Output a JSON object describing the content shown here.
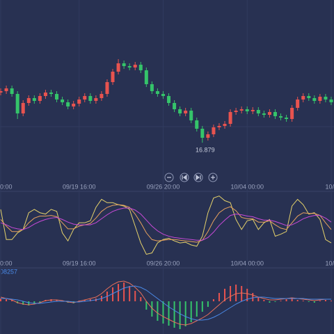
{
  "chart_data": [
    {
      "type": "candlestick",
      "categories": [
        "0:00",
        null,
        null,
        null,
        null,
        null,
        null,
        null,
        null,
        null,
        null,
        null,
        null,
        null,
        "09/19 16:00",
        null,
        null,
        null,
        null,
        null,
        null,
        null,
        null,
        null,
        null,
        null,
        null,
        null,
        null,
        "09/26 20:00",
        null,
        null,
        null,
        null,
        null,
        null,
        null,
        null,
        null,
        null,
        null,
        null,
        null,
        null,
        "10/04 00:00",
        null,
        null,
        null,
        null,
        null,
        null,
        null,
        null,
        null,
        null,
        null,
        null,
        null,
        null,
        "10/"
      ],
      "open": [
        17.6,
        17.62,
        17.66,
        17.58,
        17.3,
        17.45,
        17.52,
        17.48,
        17.55,
        17.6,
        17.58,
        17.5,
        17.46,
        17.4,
        17.44,
        17.5,
        17.55,
        17.48,
        17.52,
        17.58,
        17.75,
        17.9,
        18.02,
        17.98,
        17.96,
        18.0,
        17.92,
        17.72,
        17.62,
        17.58,
        17.55,
        17.45,
        17.36,
        17.3,
        17.34,
        17.2,
        17.08,
        16.95,
        17.0,
        17.1,
        17.12,
        17.15,
        17.32,
        17.34,
        17.36,
        17.33,
        17.35,
        17.3,
        17.28,
        17.32,
        17.26,
        17.24,
        17.22,
        17.38,
        17.5,
        17.55,
        17.52,
        17.48,
        17.54,
        17.5
      ],
      "high": [
        17.66,
        17.7,
        17.7,
        17.62,
        17.49,
        17.56,
        17.56,
        17.59,
        17.64,
        17.64,
        17.62,
        17.54,
        17.5,
        17.48,
        17.54,
        17.59,
        17.59,
        17.56,
        17.62,
        17.79,
        17.94,
        18.08,
        18.06,
        18.02,
        18.04,
        18.04,
        17.96,
        17.76,
        17.66,
        17.62,
        17.59,
        17.49,
        17.4,
        17.38,
        17.38,
        17.24,
        17.12,
        17.04,
        17.14,
        17.16,
        17.19,
        17.36,
        17.38,
        17.4,
        17.4,
        17.39,
        17.39,
        17.34,
        17.36,
        17.36,
        17.3,
        17.28,
        17.42,
        17.54,
        17.59,
        17.59,
        17.56,
        17.58,
        17.58,
        17.54
      ],
      "low": [
        17.56,
        17.58,
        17.54,
        17.22,
        17.26,
        17.41,
        17.44,
        17.44,
        17.51,
        17.54,
        17.46,
        17.42,
        17.36,
        17.36,
        17.4,
        17.46,
        17.44,
        17.44,
        17.48,
        17.54,
        17.71,
        17.86,
        17.94,
        17.92,
        17.92,
        17.88,
        17.68,
        17.58,
        17.54,
        17.51,
        17.41,
        17.32,
        17.26,
        17.26,
        17.16,
        17.04,
        16.879,
        16.91,
        16.96,
        17.06,
        17.08,
        17.11,
        17.28,
        17.3,
        17.29,
        17.29,
        17.26,
        17.24,
        17.24,
        17.22,
        17.2,
        17.18,
        17.18,
        17.34,
        17.46,
        17.48,
        17.44,
        17.44,
        17.46,
        17.42
      ],
      "close": [
        17.62,
        17.66,
        17.58,
        17.3,
        17.45,
        17.52,
        17.48,
        17.55,
        17.6,
        17.58,
        17.5,
        17.46,
        17.4,
        17.44,
        17.5,
        17.55,
        17.48,
        17.52,
        17.58,
        17.75,
        17.9,
        18.02,
        17.98,
        17.96,
        18.0,
        17.92,
        17.72,
        17.62,
        17.58,
        17.55,
        17.45,
        17.36,
        17.3,
        17.34,
        17.2,
        17.08,
        16.95,
        17.0,
        17.1,
        17.12,
        17.15,
        17.32,
        17.34,
        17.36,
        17.33,
        17.35,
        17.3,
        17.28,
        17.32,
        17.26,
        17.24,
        17.22,
        17.38,
        17.5,
        17.55,
        17.52,
        17.48,
        17.54,
        17.5,
        17.46
      ],
      "up_color": "#e8534f",
      "down_color": "#35c46a",
      "ylim": [
        16.38,
        18.93
      ]
    },
    {
      "type": "line",
      "series": [
        {
          "color": "#e6d36b",
          "values": [
            75,
            30,
            30,
            40,
            45,
            70,
            75,
            70,
            68,
            75,
            72,
            40,
            28,
            45,
            55,
            55,
            58,
            78,
            90,
            85,
            85,
            82,
            80,
            75,
            50,
            25,
            8,
            10,
            25,
            30,
            32,
            28,
            25,
            26,
            22,
            20,
            35,
            70,
            92,
            95,
            88,
            85,
            60,
            45,
            58,
            60,
            45,
            55,
            60,
            35,
            38,
            42,
            80,
            90,
            82,
            68,
            70,
            60,
            30,
            25
          ]
        },
        {
          "color": "#e9a25e",
          "values": [
            60,
            50,
            42,
            42,
            45,
            55,
            62,
            65,
            65,
            66,
            64,
            55,
            46,
            46,
            50,
            52,
            54,
            62,
            72,
            78,
            81,
            82,
            81,
            78,
            68,
            55,
            40,
            30,
            28,
            29,
            30,
            30,
            29,
            28,
            27,
            26,
            29,
            42,
            58,
            70,
            76,
            79,
            73,
            63,
            61,
            61,
            56,
            56,
            58,
            52,
            47,
            45,
            55,
            65,
            70,
            69,
            69,
            66,
            55,
            45
          ]
        },
        {
          "color": "#c94ad8",
          "values": [
            55,
            52,
            48,
            46,
            45,
            48,
            53,
            57,
            60,
            62,
            63,
            60,
            56,
            53,
            52,
            52,
            52,
            55,
            61,
            67,
            72,
            75,
            77,
            77,
            74,
            68,
            59,
            50,
            43,
            38,
            35,
            33,
            32,
            31,
            30,
            29,
            29,
            33,
            41,
            51,
            59,
            66,
            68,
            67,
            65,
            64,
            61,
            59,
            59,
            57,
            54,
            51,
            52,
            56,
            61,
            64,
            66,
            66,
            62,
            56
          ]
        }
      ],
      "ylim": [
        -5,
        105
      ]
    },
    {
      "type": "macd",
      "label": "08257",
      "values": [
        0.004,
        0.003,
        0.002,
        -0.003,
        -0.005,
        -0.006,
        -0.004,
        -0.002,
        0.002,
        0.003,
        0.002,
        0.001,
        -0.002,
        -0.003,
        0.001,
        0.002,
        0.003,
        0.004,
        0.008,
        0.014,
        0.02,
        0.025,
        0.027,
        0.022,
        0.015,
        0.006,
        -0.012,
        -0.022,
        -0.028,
        -0.032,
        -0.035,
        -0.038,
        -0.04,
        -0.036,
        -0.03,
        -0.022,
        -0.015,
        -0.008,
        0.003,
        0.012,
        0.018,
        0.022,
        0.024,
        0.022,
        0.018,
        0.012,
        0.006,
        0.002,
        -0.002,
        -0.001,
        0.001,
        0.003,
        0.004,
        0.002,
        0.001,
        -0.001,
        -0.002,
        0.001,
        0.002,
        0.001
      ],
      "up_color": "#e8534f",
      "down_color": "#35c46a",
      "series": [
        {
          "color": "#e8705a",
          "values": [
            0.006,
            0.004,
            0.002,
            -0.002,
            -0.004,
            -0.005,
            -0.004,
            -0.002,
            0.001,
            0.002,
            0.002,
            0.001,
            -0.001,
            -0.002,
            0,
            0.002,
            0.004,
            0.006,
            0.011,
            0.018,
            0.024,
            0.028,
            0.029,
            0.026,
            0.02,
            0.012,
            0,
            -0.01,
            -0.017,
            -0.022,
            -0.026,
            -0.03,
            -0.033,
            -0.034,
            -0.032,
            -0.028,
            -0.024,
            -0.019,
            -0.012,
            -0.005,
            0.002,
            0.007,
            0.011,
            0.012,
            0.011,
            0.009,
            0.006,
            0.004,
            0.002,
            0.002,
            0.003,
            0.004,
            0.005,
            0.004,
            0.003,
            0.002,
            0.001,
            0.002,
            0.003,
            0.003
          ]
        },
        {
          "color": "#4a8ae8",
          "values": [
            0.004,
            0.004,
            0.003,
            0.002,
            0,
            -0.002,
            -0.003,
            -0.003,
            -0.002,
            -0.001,
            0,
            0,
            0,
            -0.001,
            -0.001,
            0,
            0.001,
            0.002,
            0.004,
            0.007,
            0.011,
            0.015,
            0.019,
            0.021,
            0.022,
            0.02,
            0.016,
            0.01,
            0.004,
            -0.002,
            -0.008,
            -0.013,
            -0.018,
            -0.022,
            -0.025,
            -0.027,
            -0.027,
            -0.026,
            -0.023,
            -0.019,
            -0.014,
            -0.009,
            -0.004,
            0,
            0.003,
            0.005,
            0.006,
            0.006,
            0.005,
            0.004,
            0.004,
            0.004,
            0.004,
            0.004,
            0.004,
            0.003,
            0.003,
            0.003,
            0.003,
            0.003
          ]
        }
      ],
      "ylim": [
        -0.045,
        0.045
      ]
    }
  ]
}
